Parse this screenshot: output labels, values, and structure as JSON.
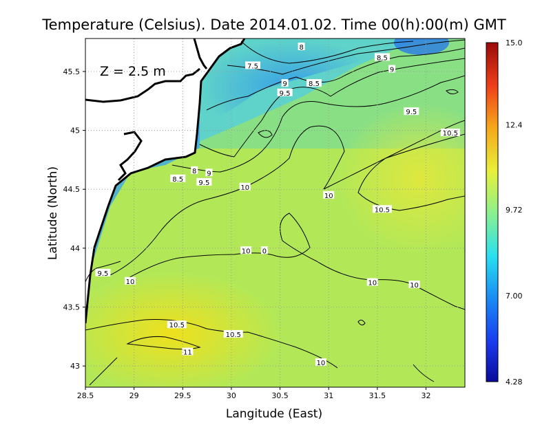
{
  "chart_data": {
    "type": "heatmap",
    "title": "Temperature (Celsius). Date 2014.01.02. Time 00(h):00(m)  GMT",
    "annotation": "Z = 2.5 m",
    "xlabel": "Langitude (East)",
    "ylabel": "Latitude (North)",
    "xlim": [
      28.5,
      32.4
    ],
    "ylim": [
      42.82,
      45.78
    ],
    "x_ticks": [
      "28.5",
      "29",
      "29.5",
      "30",
      "30.5",
      "31",
      "31.5",
      "32"
    ],
    "x_tick_values": [
      28.5,
      29,
      29.5,
      30,
      30.5,
      31,
      31.5,
      32
    ],
    "y_ticks": [
      "43",
      "43.5",
      "44",
      "44.5",
      "45",
      "45.5"
    ],
    "y_tick_values": [
      43,
      43.5,
      44,
      44.5,
      45,
      45.5
    ],
    "grid": true,
    "colorbar": {
      "min": 4.28,
      "max": 15.0,
      "tick_labels": [
        "15.0",
        "12.4",
        "9.72",
        "7.00",
        "4.28"
      ],
      "tick_values": [
        15.0,
        12.4,
        9.72,
        7.0,
        4.28
      ]
    },
    "contour_labels": [
      {
        "text": "8",
        "lon": 30.72,
        "lat": 45.71
      },
      {
        "text": "7.5",
        "lon": 30.22,
        "lat": 45.55
      },
      {
        "text": "8.5",
        "lon": 31.55,
        "lat": 45.62
      },
      {
        "text": "9",
        "lon": 31.65,
        "lat": 45.52
      },
      {
        "text": "9",
        "lon": 30.55,
        "lat": 45.4
      },
      {
        "text": "8.5",
        "lon": 30.85,
        "lat": 45.4
      },
      {
        "text": "9.5",
        "lon": 30.55,
        "lat": 45.32
      },
      {
        "text": "9.5",
        "lon": 31.85,
        "lat": 45.16
      },
      {
        "text": "10.5",
        "lon": 32.25,
        "lat": 44.98
      },
      {
        "text": "8",
        "lon": 29.62,
        "lat": 44.66
      },
      {
        "text": "9",
        "lon": 29.77,
        "lat": 44.64
      },
      {
        "text": "8.5",
        "lon": 29.45,
        "lat": 44.59
      },
      {
        "text": "9.5",
        "lon": 29.72,
        "lat": 44.56
      },
      {
        "text": "10",
        "lon": 30.14,
        "lat": 44.52
      },
      {
        "text": "10",
        "lon": 31.0,
        "lat": 44.45
      },
      {
        "text": "10.5",
        "lon": 31.55,
        "lat": 44.33
      },
      {
        "text": "10",
        "lon": 30.15,
        "lat": 43.98
      },
      {
        "text": "0",
        "lon": 30.34,
        "lat": 43.98
      },
      {
        "text": "9.5",
        "lon": 28.68,
        "lat": 43.79
      },
      {
        "text": "10",
        "lon": 28.96,
        "lat": 43.72
      },
      {
        "text": "10",
        "lon": 31.45,
        "lat": 43.71
      },
      {
        "text": "10",
        "lon": 31.88,
        "lat": 43.69
      },
      {
        "text": "10.5",
        "lon": 29.44,
        "lat": 43.35
      },
      {
        "text": "10.5",
        "lon": 30.02,
        "lat": 43.27
      },
      {
        "text": "11",
        "lon": 29.55,
        "lat": 43.12
      },
      {
        "text": "10",
        "lon": 30.92,
        "lat": 43.03
      }
    ]
  }
}
